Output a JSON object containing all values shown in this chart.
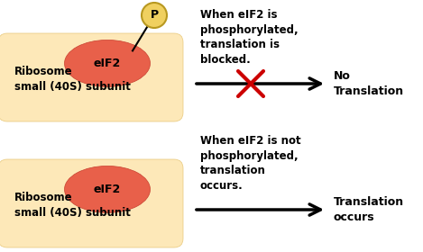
{
  "background_color": "#ffffff",
  "ribosome_color": "#fde8b8",
  "ribosome_edge": "#e8c87a",
  "eif2_color": "#e8604a",
  "eif2_edge": "#c84030",
  "phospho_circle_color": "#f0d060",
  "phospho_circle_edge": "#b89820",
  "text_color": "#000000",
  "arrow_color": "#000000",
  "x_color": "#cc0000",
  "top_text": "When eIF2 is\nphosphorylated,\ntranslation is\nblocked.",
  "bottom_text": "When eIF2 is not\nphosphorylated,\ntranslation\noccurs.",
  "top_label": "No\nTranslation",
  "bottom_label": "Translation\noccurs",
  "ribosome_label": "Ribosome\nsmall (40S) subunit",
  "eif2_label": "eIF2",
  "phospho_label": "P"
}
